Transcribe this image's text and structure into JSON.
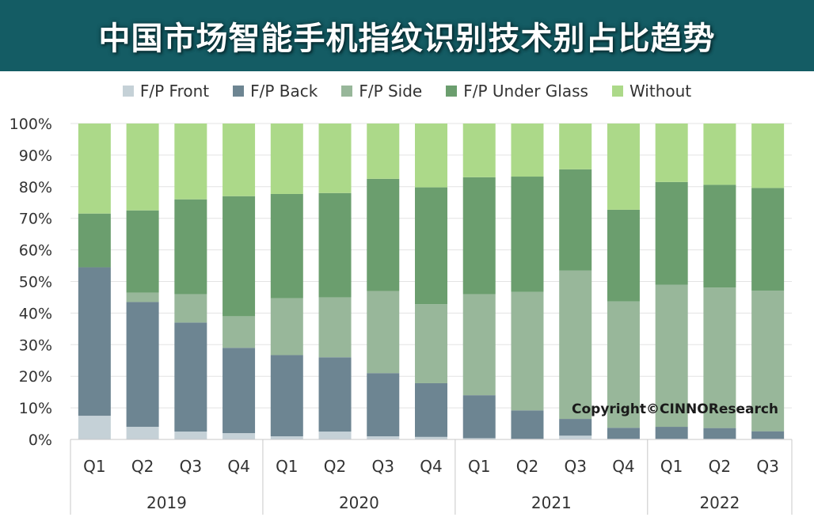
{
  "header": {
    "title": "中国市场智能手机指纹识别技术别占比趋势"
  },
  "watermark": "Copyright©CINNOResearch",
  "chart_data": {
    "type": "bar",
    "stacked": true,
    "percent": true,
    "ylim": [
      0,
      100
    ],
    "yticks": [
      "0%",
      "10%",
      "20%",
      "30%",
      "40%",
      "50%",
      "60%",
      "70%",
      "80%",
      "90%",
      "100%"
    ],
    "categories": [
      "Q1",
      "Q2",
      "Q3",
      "Q4",
      "Q1",
      "Q2",
      "Q3",
      "Q4",
      "Q1",
      "Q2",
      "Q3",
      "Q4",
      "Q1",
      "Q2",
      "Q3"
    ],
    "groups": [
      {
        "label": "2019",
        "start": 0,
        "count": 4
      },
      {
        "label": "2020",
        "start": 4,
        "count": 4
      },
      {
        "label": "2021",
        "start": 8,
        "count": 4
      },
      {
        "label": "2022",
        "start": 12,
        "count": 3
      }
    ],
    "legend_position": "top",
    "series": [
      {
        "name": "F/P Front",
        "color": "#c5d1d7",
        "values": [
          7.5,
          4,
          2.5,
          2,
          1,
          2.5,
          1,
          0.8,
          0.4,
          0.2,
          1.2,
          0.2,
          0.2,
          0.2,
          0.2
        ]
      },
      {
        "name": "F/P Back",
        "color": "#6d8592",
        "values": [
          47,
          39.5,
          34.5,
          27,
          25.7,
          23.5,
          20,
          17,
          13.6,
          9,
          5.3,
          3.5,
          3.8,
          3.4,
          2.4
        ]
      },
      {
        "name": "F/P Side",
        "color": "#98b79a",
        "values": [
          0,
          3,
          9,
          10,
          18,
          19,
          26,
          25,
          32,
          37.5,
          47,
          40,
          45,
          44.5,
          44.5
        ]
      },
      {
        "name": "F/P Under Glass",
        "color": "#6b9e6e",
        "values": [
          17,
          26,
          30,
          38,
          33,
          33,
          35.5,
          37,
          37,
          36.5,
          32,
          29,
          32.5,
          32.5,
          32.5
        ]
      },
      {
        "name": "Without",
        "color": "#acd989",
        "values": [
          28.5,
          27.5,
          24,
          23,
          22.3,
          22,
          17.5,
          20.2,
          17,
          16.8,
          14.5,
          27.3,
          18.5,
          19.4,
          20.4
        ]
      }
    ]
  }
}
